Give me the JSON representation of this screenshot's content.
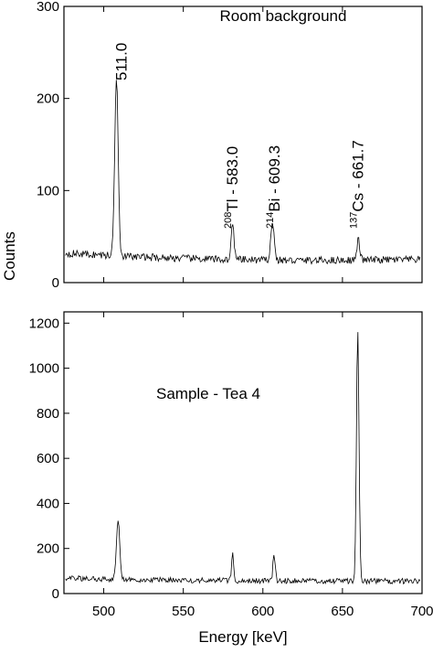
{
  "chart_data": {
    "type": "line",
    "xlabel": "Energy [keV]",
    "ylabel": "Counts",
    "xlim": [
      475,
      700
    ],
    "xticks": [
      500,
      550,
      600,
      650,
      700
    ],
    "grid": false,
    "panels": [
      {
        "title": "Room background",
        "ylim": [
          0,
          300
        ],
        "yticks": [
          0,
          100,
          200,
          300
        ],
        "baseline": [
          [
            475,
            32
          ],
          [
            520,
            28
          ],
          [
            575,
            25
          ],
          [
            620,
            24
          ],
          [
            700,
            25
          ]
        ],
        "peaks": [
          {
            "center": 508,
            "height": 195,
            "width": 1.1
          },
          {
            "center": 581,
            "height": 38,
            "width": 0.9
          },
          {
            "center": 606,
            "height": 40,
            "width": 1.1
          },
          {
            "center": 660,
            "height": 22,
            "width": 0.9
          }
        ],
        "noise_amplitude": 4,
        "annotations": [
          {
            "iso": "",
            "text": "511.0",
            "x": 511.0
          },
          {
            "iso": "208",
            "text": "Tl - 583.0",
            "x": 583.0
          },
          {
            "iso": "214",
            "text": "Bi - 609.3",
            "x": 609.3
          },
          {
            "iso": "137",
            "text": "Cs - 661.7",
            "x": 661.7
          }
        ]
      },
      {
        "title": "Sample - Tea 4",
        "ylim": [
          0,
          1250
        ],
        "yticks": [
          0,
          200,
          400,
          600,
          800,
          1000,
          1200
        ],
        "baseline": [
          [
            475,
            68
          ],
          [
            520,
            62
          ],
          [
            575,
            58
          ],
          [
            620,
            56
          ],
          [
            700,
            55
          ]
        ],
        "peaks": [
          {
            "center": 509,
            "height": 265,
            "width": 1.0
          },
          {
            "center": 581,
            "height": 115,
            "width": 0.7
          },
          {
            "center": 607,
            "height": 120,
            "width": 0.7
          },
          {
            "center": 659.6,
            "height": 1110,
            "width": 0.8
          }
        ],
        "noise_amplitude": 12,
        "annotations": []
      }
    ]
  }
}
